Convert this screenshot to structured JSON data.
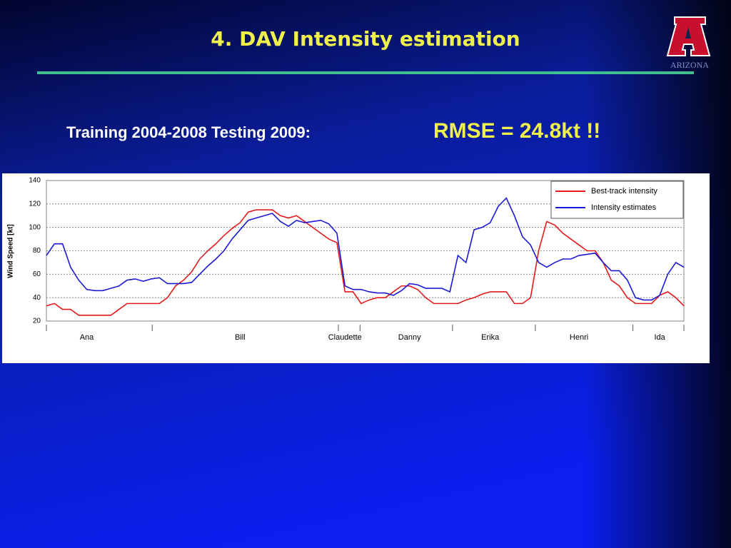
{
  "slide": {
    "title": "4. DAV Intensity estimation",
    "subtitle": "Training  2004-2008 Testing 2009:",
    "highlight": "RMSE = 24.8kt !!",
    "logo_text": "ARIZONA"
  },
  "chart_data": {
    "type": "line",
    "ylabel": "Wind Speed [kt]",
    "categories": [
      null,
      null,
      null,
      null,
      null,
      "Ana",
      null,
      null,
      null,
      null,
      null,
      null,
      null,
      null,
      null,
      null,
      null,
      null,
      null,
      null,
      null,
      null,
      null,
      null,
      "Bill",
      null,
      null,
      null,
      null,
      null,
      null,
      null,
      null,
      null,
      null,
      null,
      null,
      "Claudette",
      null,
      null,
      null,
      null,
      null,
      null,
      null,
      "Danny",
      null,
      null,
      null,
      null,
      null,
      null,
      null,
      null,
      null,
      "Erika",
      null,
      null,
      null,
      null,
      null,
      null,
      null,
      null,
      null,
      null,
      "Henri",
      null,
      null,
      null,
      null,
      null,
      null,
      null,
      null,
      null,
      "Ida",
      null,
      null,
      null
    ],
    "series": [
      {
        "name": "Best-track intensity",
        "color": "#e41a1c",
        "values": [
          33,
          35,
          30,
          30,
          25,
          25,
          25,
          25,
          25,
          30,
          35,
          35,
          35,
          35,
          35,
          40,
          50,
          55,
          62,
          73,
          80,
          86,
          93,
          99,
          104,
          113,
          115,
          115,
          115,
          110,
          108,
          110,
          105,
          100,
          95,
          90,
          87,
          45,
          45,
          35,
          38,
          40,
          40,
          45,
          50,
          50,
          47,
          40,
          35,
          35,
          35,
          35,
          38,
          40,
          43,
          45,
          45,
          45,
          35,
          35,
          40,
          80,
          105,
          102,
          95,
          90,
          85,
          80,
          80,
          70,
          55,
          50,
          40,
          35,
          35,
          35,
          42,
          45,
          40,
          33
        ]
      },
      {
        "name": "Intensity estimates",
        "color": "#1a1ad6",
        "values": [
          76,
          86,
          86,
          66,
          55,
          47,
          46,
          46,
          48,
          50,
          55,
          56,
          54,
          56,
          57,
          52,
          52,
          52,
          53,
          60,
          67,
          73,
          80,
          90,
          98,
          106,
          108,
          110,
          112,
          105,
          101,
          106,
          104,
          105,
          106,
          103,
          95,
          50,
          47,
          47,
          45,
          44,
          44,
          42,
          46,
          52,
          51,
          48,
          48,
          48,
          45,
          76,
          70,
          98,
          100,
          104,
          118,
          125,
          110,
          92,
          85,
          70,
          66,
          70,
          73,
          73,
          76,
          77,
          78,
          70,
          63,
          63,
          55,
          40,
          38,
          38,
          42,
          60,
          70,
          66
        ]
      }
    ],
    "ylim": [
      20,
      140
    ],
    "yticks": [
      20,
      40,
      60,
      80,
      100,
      120,
      140
    ],
    "grid": true,
    "legend": "upper right"
  }
}
